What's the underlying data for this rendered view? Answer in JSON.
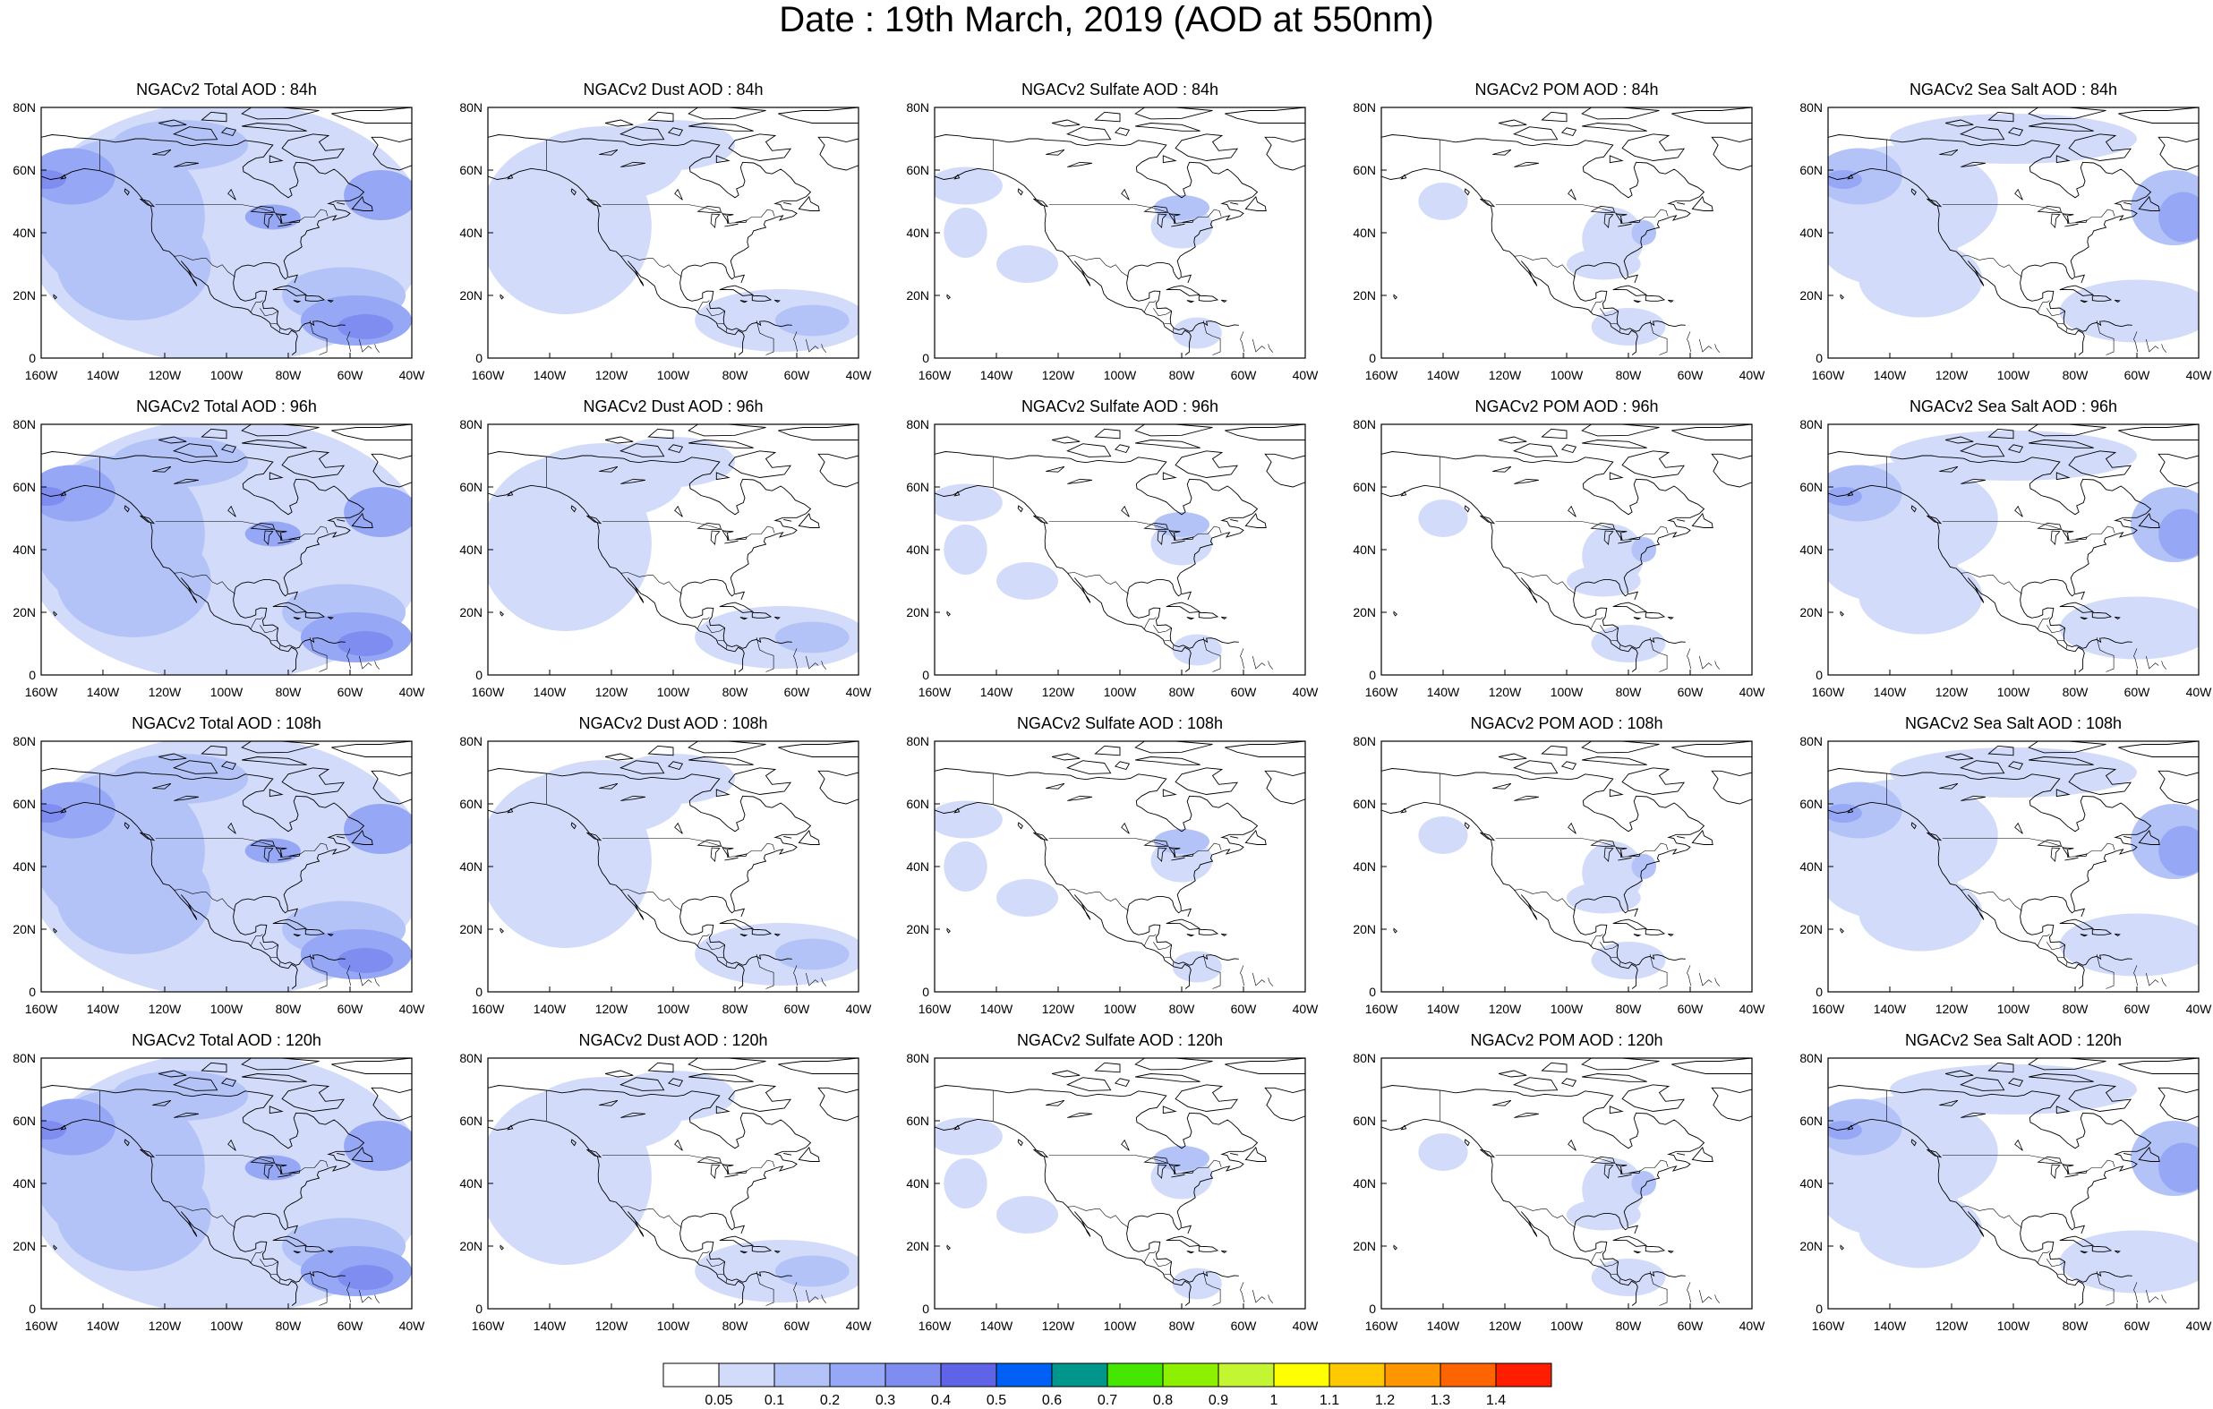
{
  "title": "Date : 19th March, 2019 (AOD at 550nm)",
  "axes": {
    "lon_labels": [
      "160W",
      "140W",
      "120W",
      "100W",
      "80W",
      "60W",
      "40W"
    ],
    "lat_labels": [
      "0",
      "20N",
      "40N",
      "60N",
      "80N"
    ],
    "lon_range_deg": [
      -160,
      -40
    ],
    "lat_range_deg": [
      0,
      80
    ]
  },
  "panels": [
    [
      {
        "title": "NGACv2 Total AOD : 84h",
        "species": "total"
      },
      {
        "title": "NGACv2 Dust AOD : 84h",
        "species": "dust"
      },
      {
        "title": "NGACv2 Sulfate AOD : 84h",
        "species": "sulfate"
      },
      {
        "title": "NGACv2 POM AOD : 84h",
        "species": "pom"
      },
      {
        "title": "NGACv2 Sea Salt AOD : 84h",
        "species": "seasalt"
      }
    ],
    [
      {
        "title": "NGACv2 Total AOD : 96h",
        "species": "total"
      },
      {
        "title": "NGACv2 Dust AOD : 96h",
        "species": "dust"
      },
      {
        "title": "NGACv2 Sulfate AOD : 96h",
        "species": "sulfate"
      },
      {
        "title": "NGACv2 POM AOD : 96h",
        "species": "pom"
      },
      {
        "title": "NGACv2 Sea Salt AOD : 96h",
        "species": "seasalt"
      }
    ],
    [
      {
        "title": "NGACv2 Total AOD : 108h",
        "species": "total"
      },
      {
        "title": "NGACv2 Dust AOD : 108h",
        "species": "dust"
      },
      {
        "title": "NGACv2 Sulfate AOD : 108h",
        "species": "sulfate"
      },
      {
        "title": "NGACv2 POM AOD : 108h",
        "species": "pom"
      },
      {
        "title": "NGACv2 Sea Salt AOD : 108h",
        "species": "seasalt"
      }
    ],
    [
      {
        "title": "NGACv2 Total AOD : 120h",
        "species": "total"
      },
      {
        "title": "NGACv2 Dust AOD : 120h",
        "species": "dust"
      },
      {
        "title": "NGACv2 Sulfate AOD : 120h",
        "species": "sulfate"
      },
      {
        "title": "NGACv2 POM AOD : 120h",
        "species": "pom"
      },
      {
        "title": "NGACv2 Sea Salt  AOD : 120h",
        "species": "seasalt"
      }
    ]
  ],
  "colorbar": {
    "labels": [
      "0.05",
      "0.1",
      "0.2",
      "0.3",
      "0.4",
      "0.5",
      "0.6",
      "0.7",
      "0.8",
      "0.9",
      "1",
      "1.1",
      "1.2",
      "1.3",
      "1.4"
    ],
    "colors": [
      "#ffffff",
      "#d2dcfa",
      "#b4c3f7",
      "#96a8f5",
      "#7f8cf0",
      "#5f64e6",
      "#005ff5",
      "#00968c",
      "#46e600",
      "#8cf000",
      "#c3f532",
      "#ffff00",
      "#ffc800",
      "#ff9600",
      "#ff6400",
      "#ff1e00"
    ]
  }
}
